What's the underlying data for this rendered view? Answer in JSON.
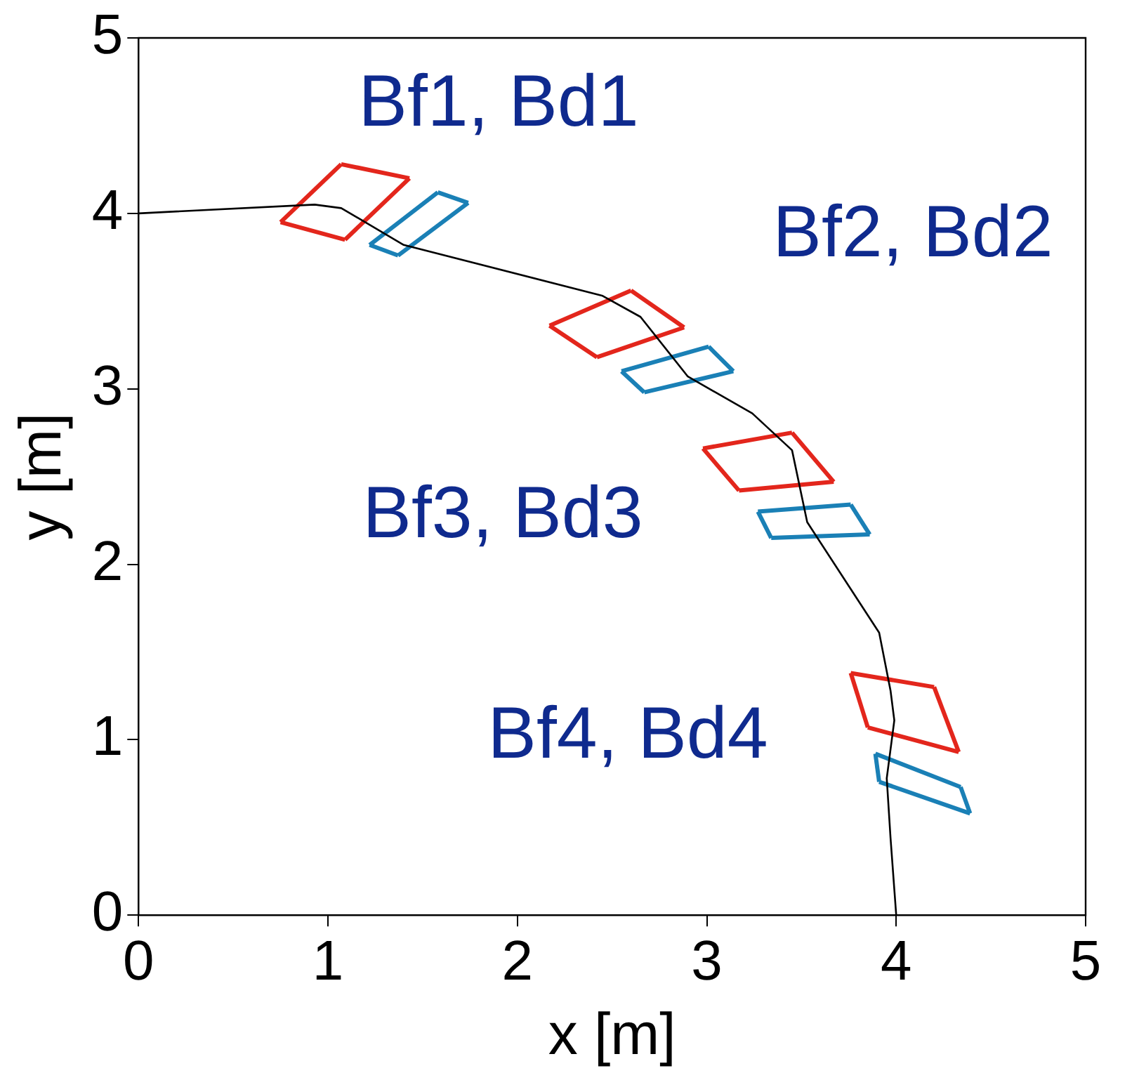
{
  "chart_data": {
    "type": "line",
    "xlabel": "x [m]",
    "ylabel": "y [m]",
    "xlim": [
      0,
      5
    ],
    "ylim": [
      0,
      5
    ],
    "xticks": [
      0,
      1,
      2,
      3,
      4,
      5
    ],
    "yticks": [
      0,
      1,
      2,
      3,
      4,
      5
    ],
    "grid": false,
    "legend": false,
    "marker": "none",
    "line_style": "solid",
    "series": [
      {
        "color": "#000000",
        "x": [
          0,
          0.93,
          1.07,
          1.4,
          2.45,
          2.65,
          2.9,
          3.24,
          3.45,
          3.53,
          3.91,
          3.97,
          3.99,
          3.95,
          3.97,
          4.0
        ],
        "values": [
          4.0,
          4.05,
          4.03,
          3.82,
          3.53,
          3.41,
          3.07,
          2.86,
          2.65,
          2.24,
          1.61,
          1.28,
          1.11,
          0.78,
          0.44,
          0
        ]
      },
      {
        "color": "#e3261c",
        "x": [
          0.75,
          1.07
        ],
        "values": [
          3.95,
          4.28
        ]
      },
      {
        "color": "#e3261c",
        "x": [
          1.07,
          1.43
        ],
        "values": [
          4.28,
          4.2
        ]
      },
      {
        "color": "#e3261c",
        "x": [
          1.09,
          1.43
        ],
        "values": [
          3.85,
          4.2
        ]
      },
      {
        "color": "#e3261c",
        "x": [
          0.75,
          1.09
        ],
        "values": [
          3.95,
          3.85
        ]
      },
      {
        "color": "#1a80b6",
        "x": [
          1.22,
          1.58
        ],
        "values": [
          3.82,
          4.12
        ]
      },
      {
        "color": "#1a80b6",
        "x": [
          1.58,
          1.74
        ],
        "values": [
          4.12,
          4.06
        ]
      },
      {
        "color": "#1a80b6",
        "x": [
          1.37,
          1.74
        ],
        "values": [
          3.76,
          4.06
        ]
      },
      {
        "color": "#1a80b6",
        "x": [
          1.22,
          1.37
        ],
        "values": [
          3.82,
          3.76
        ]
      },
      {
        "color": "#e3261c",
        "x": [
          2.17,
          2.6
        ],
        "values": [
          3.36,
          3.56
        ]
      },
      {
        "color": "#e3261c",
        "x": [
          2.6,
          2.88
        ],
        "values": [
          3.56,
          3.35
        ]
      },
      {
        "color": "#e3261c",
        "x": [
          2.42,
          2.88
        ],
        "values": [
          3.18,
          3.35
        ]
      },
      {
        "color": "#e3261c",
        "x": [
          2.17,
          2.42
        ],
        "values": [
          3.36,
          3.18
        ]
      },
      {
        "color": "#1a80b6",
        "x": [
          2.55,
          3.01
        ],
        "values": [
          3.1,
          3.24
        ]
      },
      {
        "color": "#1a80b6",
        "x": [
          3.01,
          3.14
        ],
        "values": [
          3.24,
          3.1
        ]
      },
      {
        "color": "#1a80b6",
        "x": [
          2.67,
          3.14
        ],
        "values": [
          2.98,
          3.1
        ]
      },
      {
        "color": "#1a80b6",
        "x": [
          2.55,
          2.67
        ],
        "values": [
          3.1,
          2.98
        ]
      },
      {
        "color": "#e3261c",
        "x": [
          2.98,
          3.45
        ],
        "values": [
          2.66,
          2.75
        ]
      },
      {
        "color": "#e3261c",
        "x": [
          3.45,
          3.67
        ],
        "values": [
          2.75,
          2.47
        ]
      },
      {
        "color": "#e3261c",
        "x": [
          3.17,
          3.67
        ],
        "values": [
          2.42,
          2.47
        ]
      },
      {
        "color": "#e3261c",
        "x": [
          2.98,
          3.17
        ],
        "values": [
          2.66,
          2.42
        ]
      },
      {
        "color": "#1a80b6",
        "x": [
          3.27,
          3.76
        ],
        "values": [
          2.3,
          2.34
        ]
      },
      {
        "color": "#1a80b6",
        "x": [
          3.76,
          3.86
        ],
        "values": [
          2.34,
          2.17
        ]
      },
      {
        "color": "#1a80b6",
        "x": [
          3.34,
          3.86
        ],
        "values": [
          2.15,
          2.17
        ]
      },
      {
        "color": "#1a80b6",
        "x": [
          3.27,
          3.34
        ],
        "values": [
          2.3,
          2.15
        ]
      },
      {
        "color": "#e3261c",
        "x": [
          3.76,
          4.2
        ],
        "values": [
          1.38,
          1.3
        ]
      },
      {
        "color": "#e3261c",
        "x": [
          4.2,
          4.33
        ],
        "values": [
          1.3,
          0.93
        ]
      },
      {
        "color": "#e3261c",
        "x": [
          3.85,
          4.33
        ],
        "values": [
          1.07,
          0.93
        ]
      },
      {
        "color": "#e3261c",
        "x": [
          3.76,
          3.85
        ],
        "values": [
          1.38,
          1.07
        ]
      },
      {
        "color": "#1a80b6",
        "x": [
          3.89,
          4.34
        ],
        "values": [
          0.92,
          0.73
        ]
      },
      {
        "color": "#1a80b6",
        "x": [
          4.34,
          4.39
        ],
        "values": [
          0.73,
          0.58
        ]
      },
      {
        "color": "#1a80b6",
        "x": [
          3.91,
          4.39
        ],
        "values": [
          0.76,
          0.58
        ]
      },
      {
        "color": "#1a80b6",
        "x": [
          3.89,
          3.91
        ],
        "values": [
          0.92,
          0.76
        ]
      }
    ],
    "annotations": [
      "Bf1, Bd1",
      "Bf2, Bd2",
      "Bf3, Bd3",
      "Bf4, Bd4"
    ]
  }
}
